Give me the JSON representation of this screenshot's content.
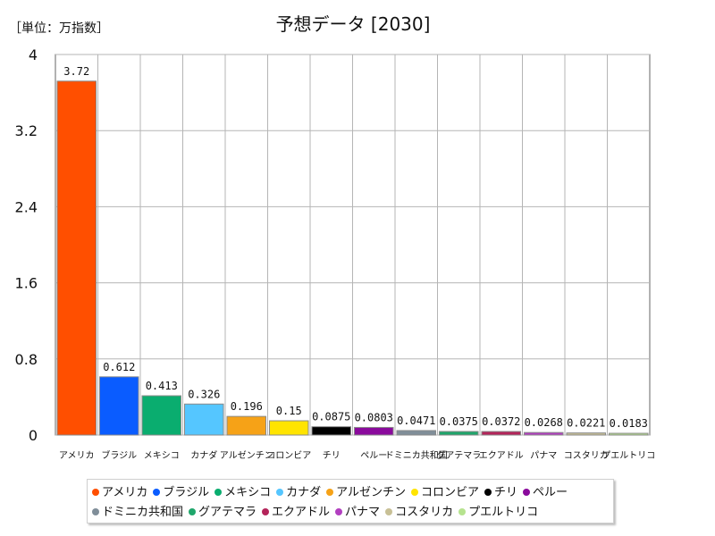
{
  "chart_data": {
    "type": "bar",
    "title": "予想データ [2030]",
    "unit_label": "［単位：万指数］",
    "categories": [
      "アメリカ",
      "ブラジル",
      "メキシコ",
      "カナダ",
      "アルゼンチン",
      "コロンビア",
      "チリ",
      "ペルー",
      "ドミニカ共和国",
      "グアテマラ",
      "エクアドル",
      "パナマ",
      "コスタリカ",
      "プエルトリコ"
    ],
    "values": [
      3.72,
      0.612,
      0.413,
      0.326,
      0.196,
      0.15,
      0.0875,
      0.0803,
      0.0471,
      0.0375,
      0.0372,
      0.0268,
      0.0221,
      0.0183
    ],
    "value_labels": [
      "3.72",
      "0.612",
      "0.413",
      "0.326",
      "0.196",
      "0.15",
      "0.0875",
      "0.0803",
      "0.0471",
      "0.0375",
      "0.0372",
      "0.0268",
      "0.0221",
      "0.0183"
    ],
    "colors": [
      "#ff4f00",
      "#0a5cff",
      "#0aad6f",
      "#55c6ff",
      "#f6a217",
      "#ffe400",
      "#000000",
      "#8a0a9c",
      "#808e99",
      "#1fa66b",
      "#b4245a",
      "#b23fc0",
      "#c8c096",
      "#b6e38f"
    ],
    "ylim": [
      0,
      4
    ],
    "yticks": [
      "0",
      "0.8",
      "1.6",
      "2.4",
      "3.2",
      "4"
    ],
    "ytick_values": [
      0,
      0.8,
      1.6,
      2.4,
      3.2,
      4
    ],
    "grid": true,
    "legend_position": "bottom"
  }
}
